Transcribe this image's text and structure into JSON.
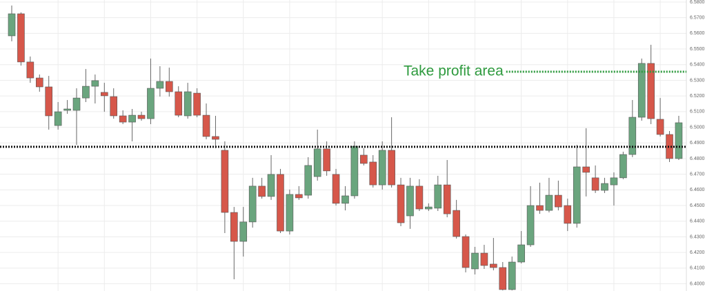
{
  "chart_data": {
    "type": "candlestick",
    "up_color": "#6aa57e",
    "down_color": "#d6574a",
    "open": [
      6.5584,
      6.5725,
      6.5417,
      6.5315,
      6.5258,
      6.5011,
      6.5108,
      6.5108,
      6.5187,
      6.5262,
      6.5223,
      6.5196,
      6.5073,
      6.5033,
      6.5077,
      6.5055,
      6.5249,
      6.5293,
      6.5227,
      6.5073,
      6.5218,
      6.5077,
      6.4941,
      6.4853,
      6.4456,
      6.4271,
      6.4395,
      6.4624,
      6.4558,
      6.4699,
      6.4337,
      6.4571,
      6.4566,
      6.4685,
      6.4862,
      6.4699,
      6.4514,
      6.4562,
      6.4822,
      6.4778,
      6.4632,
      6.4853,
      6.4632,
      6.4434,
      6.4624,
      6.4478,
      6.4483,
      6.4632,
      6.4469,
      6.4302,
      6.4095,
      6.4196,
      6.4126,
      6.4104,
      6.3963,
      6.4139,
      6.4249,
      6.45,
      6.4469,
      6.4566,
      6.45,
      6.4386,
      6.4747,
      6.4677,
      6.4597,
      6.4632,
      6.4677,
      6.4826,
      6.5064,
      6.5408,
      6.5051,
      6.4954,
      6.48
    ],
    "high": [
      6.5778,
      6.5734,
      6.5452,
      6.5337,
      6.5328,
      6.5161,
      6.5174,
      6.5249,
      6.5372,
      6.5337,
      6.5284,
      6.5249,
      6.5108,
      6.5117,
      6.5099,
      6.5439,
      6.539,
      6.5381,
      6.5262,
      6.5284,
      6.5249,
      6.5152,
      6.5073,
      6.491,
      6.4491,
      6.4491,
      6.4677,
      6.4677,
      6.4822,
      6.4734,
      6.4602,
      6.4624,
      6.4809,
      6.4985,
      6.491,
      6.4734,
      6.4624,
      6.491,
      6.4866,
      6.4822,
      6.491,
      6.5064,
      6.4677,
      6.4677,
      6.4668,
      6.4514,
      6.469,
      6.4791,
      6.4536,
      6.4315,
      6.4236,
      6.4249,
      6.4293,
      6.4139,
      6.4174,
      6.4337,
      6.4624,
      6.4646,
      6.4677,
      6.4659,
      6.4544,
      6.4888,
      6.4994,
      6.4756,
      6.4677,
      6.4712,
      6.4844,
      6.5174,
      6.5439,
      6.5527,
      6.5187,
      6.4976,
      6.5073
    ],
    "low": [
      6.5549,
      6.5394,
      6.5284,
      6.5227,
      6.4985,
      6.4985,
      6.5086,
      6.4888,
      6.5161,
      6.5152,
      6.5099,
      6.5055,
      6.502,
      6.491,
      6.5042,
      6.502,
      6.5196,
      6.5196,
      6.5064,
      6.5055,
      6.5064,
      6.4923,
      6.4866,
      6.4324,
      6.4029,
      6.4174,
      6.4359,
      6.4544,
      6.4536,
      6.4324,
      6.4315,
      6.4536,
      6.4544,
      6.4659,
      6.469,
      6.45,
      6.4469,
      6.4544,
      6.4756,
      6.4615,
      6.4602,
      6.4615,
      6.4368,
      6.4351,
      6.4465,
      6.4465,
      6.4465,
      6.4425,
      6.4289,
      6.4073,
      6.406,
      6.4095,
      6.4086,
      6.3958,
      6.3958,
      6.413,
      6.4236,
      6.4447,
      6.4456,
      6.4469,
      6.4337,
      6.4359,
      6.4558,
      6.458,
      6.458,
      6.45,
      6.4668,
      6.4809,
      6.5042,
      6.502,
      6.4941,
      6.4778,
      6.4791
    ],
    "close": [
      6.5725,
      6.5417,
      6.5315,
      6.5258,
      6.5073,
      6.5099,
      6.5117,
      6.5187,
      6.5262,
      6.5298,
      6.5201,
      6.5073,
      6.5033,
      6.5077,
      6.5055,
      6.5249,
      6.5293,
      6.5227,
      6.5077,
      6.5227,
      6.5077,
      6.4941,
      6.4923,
      6.4456,
      6.4271,
      6.4395,
      6.4624,
      6.4558,
      6.4699,
      6.4337,
      6.4571,
      6.4549,
      6.4756,
      6.4862,
      6.4721,
      6.4514,
      6.4562,
      6.4879,
      6.4769,
      6.4632,
      6.4853,
      6.4632,
      6.439,
      6.4624,
      6.4478,
      6.4491,
      6.4632,
      6.4447,
      6.4302,
      6.4104,
      6.4196,
      6.4117,
      6.4104,
      6.3963,
      6.4139,
      6.4249,
      6.45,
      6.4469,
      6.4566,
      6.4491,
      6.4386,
      6.4747,
      6.4712,
      6.4597,
      6.4641,
      6.4677,
      6.4826,
      6.5064,
      6.5408,
      6.5055,
      6.4954,
      6.48,
      6.5029
    ],
    "ylim": [
      6.3954,
      6.5813
    ],
    "yticks": [
      {
        "value": 6.58,
        "label": "6.5800"
      },
      {
        "value": 6.57,
        "label": "6.5700"
      },
      {
        "value": 6.56,
        "label": "6.5600"
      },
      {
        "value": 6.55,
        "label": "6.5500"
      },
      {
        "value": 6.54,
        "label": "6.5400"
      },
      {
        "value": 6.53,
        "label": "6.5300"
      },
      {
        "value": 6.52,
        "label": "6.5200"
      },
      {
        "value": 6.51,
        "label": "6.5100"
      },
      {
        "value": 6.5,
        "label": "6.5000"
      },
      {
        "value": 6.49,
        "label": "6.4900"
      },
      {
        "value": 6.48,
        "label": "6.4800"
      },
      {
        "value": 6.47,
        "label": "6.4700"
      },
      {
        "value": 6.46,
        "label": "6.4600"
      },
      {
        "value": 6.45,
        "label": "6.4500"
      },
      {
        "value": 6.44,
        "label": "6.4400"
      },
      {
        "value": 6.43,
        "label": "6.4300"
      },
      {
        "value": 6.42,
        "label": "6.4200"
      },
      {
        "value": 6.41,
        "label": "6.4100"
      },
      {
        "value": 6.4,
        "label": "6.4000"
      }
    ],
    "grid": true,
    "lines": [
      {
        "y": 6.4875,
        "color": "#111111"
      }
    ],
    "annotations": [
      {
        "text": "Take profit area",
        "y": 6.5355,
        "color": "#2e9a3e"
      }
    ]
  }
}
